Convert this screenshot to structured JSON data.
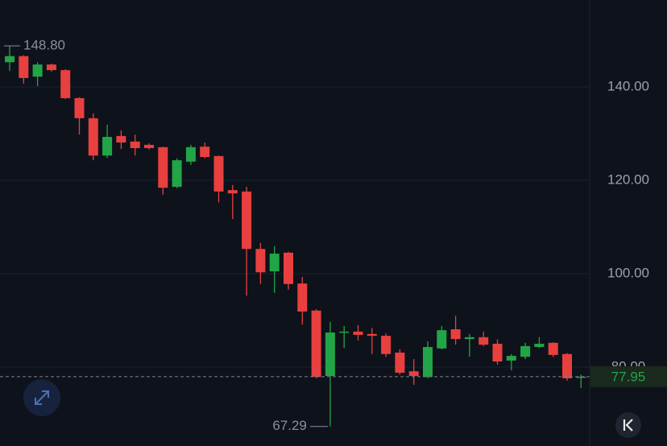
{
  "chart_data": {
    "type": "candlestick",
    "up_color": "#22a547",
    "down_color": "#e8403f",
    "open": [
      145.3,
      146.6,
      142.2,
      144.8,
      143.6,
      137.6,
      133.3,
      125.3,
      129.5,
      128.3,
      127.6,
      127.1,
      118.6,
      124.0,
      127.2,
      125.2,
      117.9,
      117.6,
      105.3,
      100.5,
      104.5,
      97.9,
      92.1,
      78.1,
      87.4,
      87.6,
      87.1,
      86.7,
      83.1,
      79.1,
      77.9,
      84.0,
      88.1,
      86.0,
      86.4,
      85.0,
      81.4,
      82.2,
      84.3,
      85.2,
      82.8,
      77.8
    ],
    "high": [
      148.8,
      146.8,
      145.3,
      145.0,
      143.8,
      137.8,
      134.3,
      131.9,
      130.7,
      129.8,
      127.9,
      127.2,
      124.7,
      127.6,
      128.1,
      125.3,
      119.0,
      118.6,
      106.6,
      105.9,
      104.7,
      99.3,
      92.4,
      89.7,
      88.8,
      89.0,
      88.4,
      87.2,
      83.8,
      81.7,
      85.5,
      88.8,
      91.0,
      87.1,
      87.6,
      85.9,
      82.8,
      85.2,
      86.4,
      85.3,
      83.0,
      78.4
    ],
    "low": [
      143.4,
      140.7,
      140.2,
      143.3,
      137.4,
      129.8,
      124.3,
      124.8,
      126.7,
      125.3,
      126.6,
      116.9,
      118.3,
      123.3,
      124.7,
      115.3,
      111.7,
      95.3,
      97.8,
      95.9,
      96.6,
      89.1,
      77.6,
      67.29,
      84.1,
      85.7,
      82.8,
      82.2,
      78.4,
      76.2,
      77.6,
      83.8,
      84.8,
      82.2,
      84.5,
      80.5,
      79.3,
      81.7,
      84.1,
      82.2,
      77.1,
      75.5
    ],
    "close": [
      146.6,
      141.9,
      144.8,
      143.6,
      137.6,
      133.3,
      125.3,
      129.3,
      128.1,
      126.9,
      126.9,
      118.4,
      124.3,
      127.1,
      125.0,
      117.6,
      117.2,
      105.3,
      100.3,
      104.3,
      97.8,
      91.9,
      77.9,
      87.4,
      87.6,
      86.9,
      86.7,
      82.8,
      78.8,
      78.1,
      84.3,
      87.9,
      86.0,
      86.4,
      84.8,
      81.2,
      82.4,
      84.5,
      85.0,
      82.6,
      77.6,
      77.95
    ],
    "high_label": "148.80",
    "low_label": "67.29",
    "last_price": {
      "value": 77.95,
      "label": "77.95"
    },
    "ylim": [
      63.1,
      158.62
    ],
    "yticks": [
      {
        "value": 80,
        "label": "80.00"
      },
      {
        "value": 100,
        "label": "100.00"
      },
      {
        "value": 120,
        "label": "120.00"
      },
      {
        "value": 140,
        "label": "140.00"
      }
    ],
    "grid": true
  }
}
